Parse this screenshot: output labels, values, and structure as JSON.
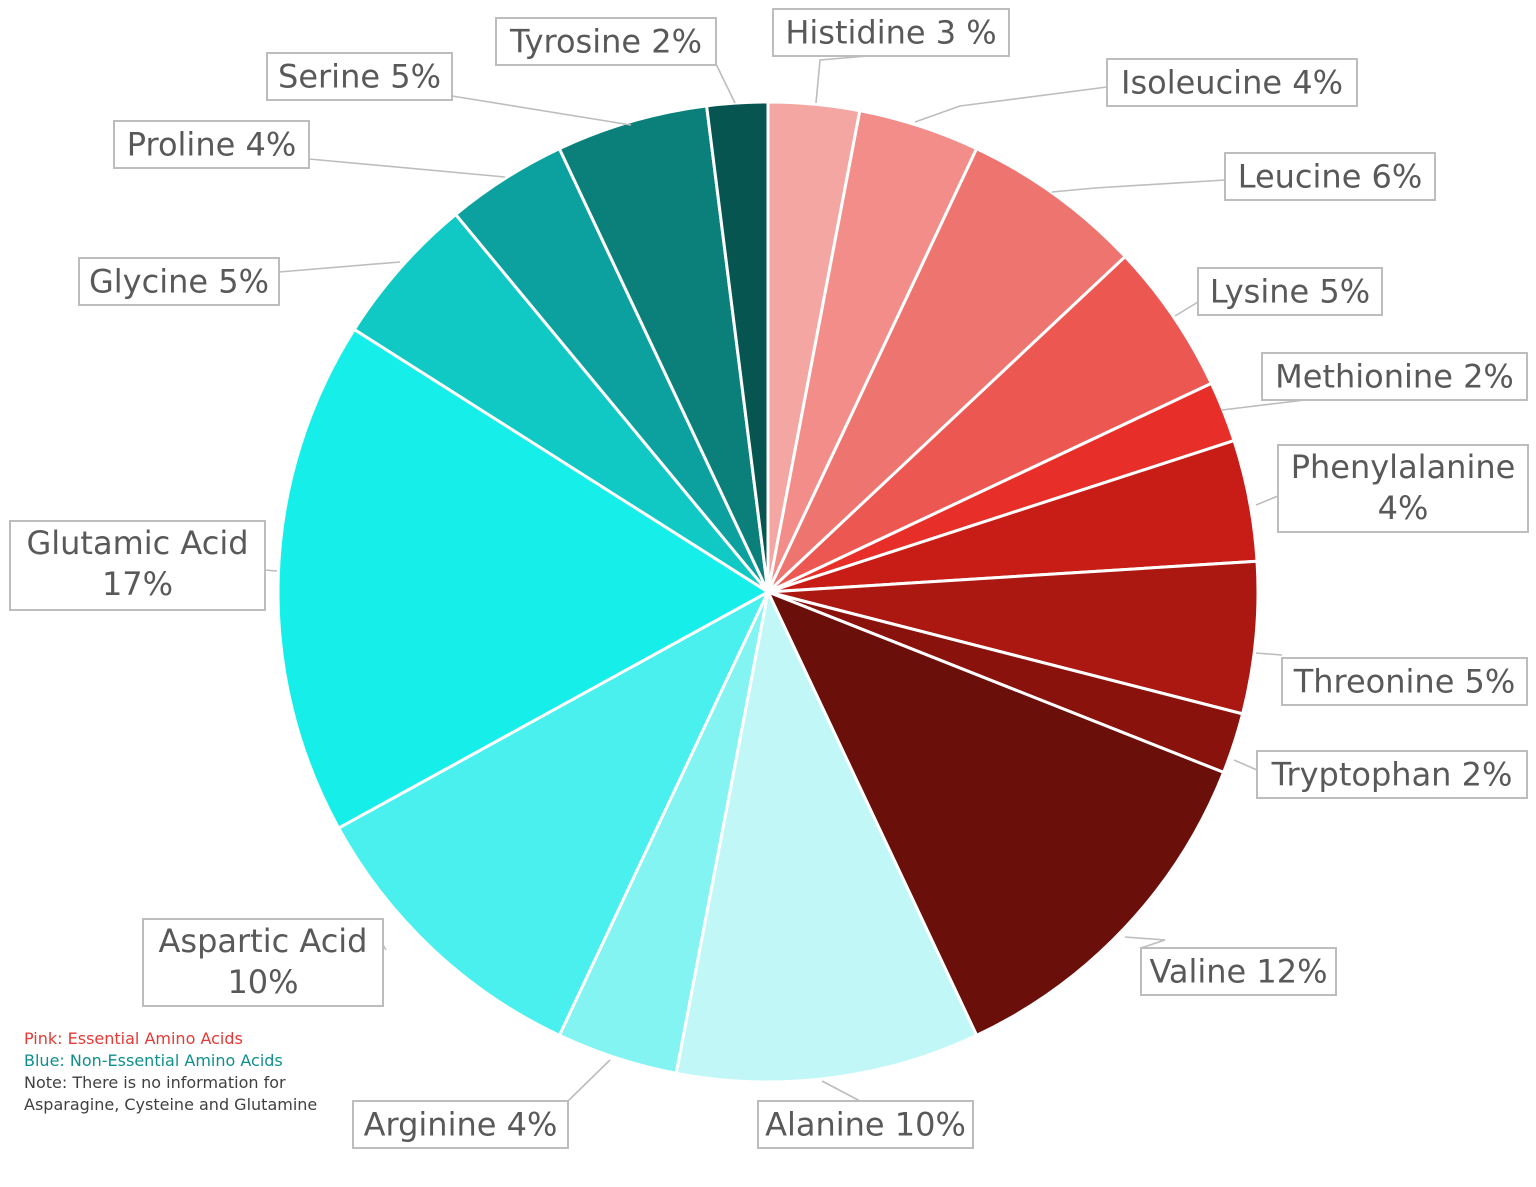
{
  "chart_data": {
    "type": "pie",
    "slices": [
      {
        "label": "Histidine 3 %",
        "value": 3,
        "color": "#f4a6a2"
      },
      {
        "label": "Isoleucine 4%",
        "value": 4,
        "color": "#f28d89"
      },
      {
        "label": "Leucine 6%",
        "value": 6,
        "color": "#ee756f"
      },
      {
        "label": "Lysine 5%",
        "value": 5,
        "color": "#ec5752"
      },
      {
        "label": "Methionine 2%",
        "value": 2,
        "color": "#e82e28"
      },
      {
        "label": "Phenylalanine 4%",
        "value": 4,
        "color": "#c81c16"
      },
      {
        "label": "Threonine 5%",
        "value": 5,
        "color": "#ab1711"
      },
      {
        "label": "Tryptophan 2%",
        "value": 2,
        "color": "#8a120d"
      },
      {
        "label": "Valine 12%",
        "value": 12,
        "color": "#6b0f0b"
      },
      {
        "label": "Alanine 10%",
        "value": 10,
        "color": "#c2f7f7"
      },
      {
        "label": "Arginine 4%",
        "value": 4,
        "color": "#84f4f2"
      },
      {
        "label": "Aspartic Acid 10%",
        "value": 10,
        "color": "#4af0ee"
      },
      {
        "label": "Glutamic Acid 17%",
        "value": 17,
        "color": "#16efe9"
      },
      {
        "label": "Glycine 5%",
        "value": 5,
        "color": "#10c9c4"
      },
      {
        "label": "Proline 4%",
        "value": 4,
        "color": "#0ca19f"
      },
      {
        "label": "Serine 5%",
        "value": 5,
        "color": "#0b807b"
      },
      {
        "label": "Tyrosine 2%",
        "value": 2,
        "color": "#065550"
      }
    ]
  },
  "notes": {
    "pink": "Pink: Essential Amino Acids",
    "blue": "Blue: Non-Essential Amino Acids",
    "info": "Note: There is no information for Asparagine, Cysteine and Glutamine"
  }
}
